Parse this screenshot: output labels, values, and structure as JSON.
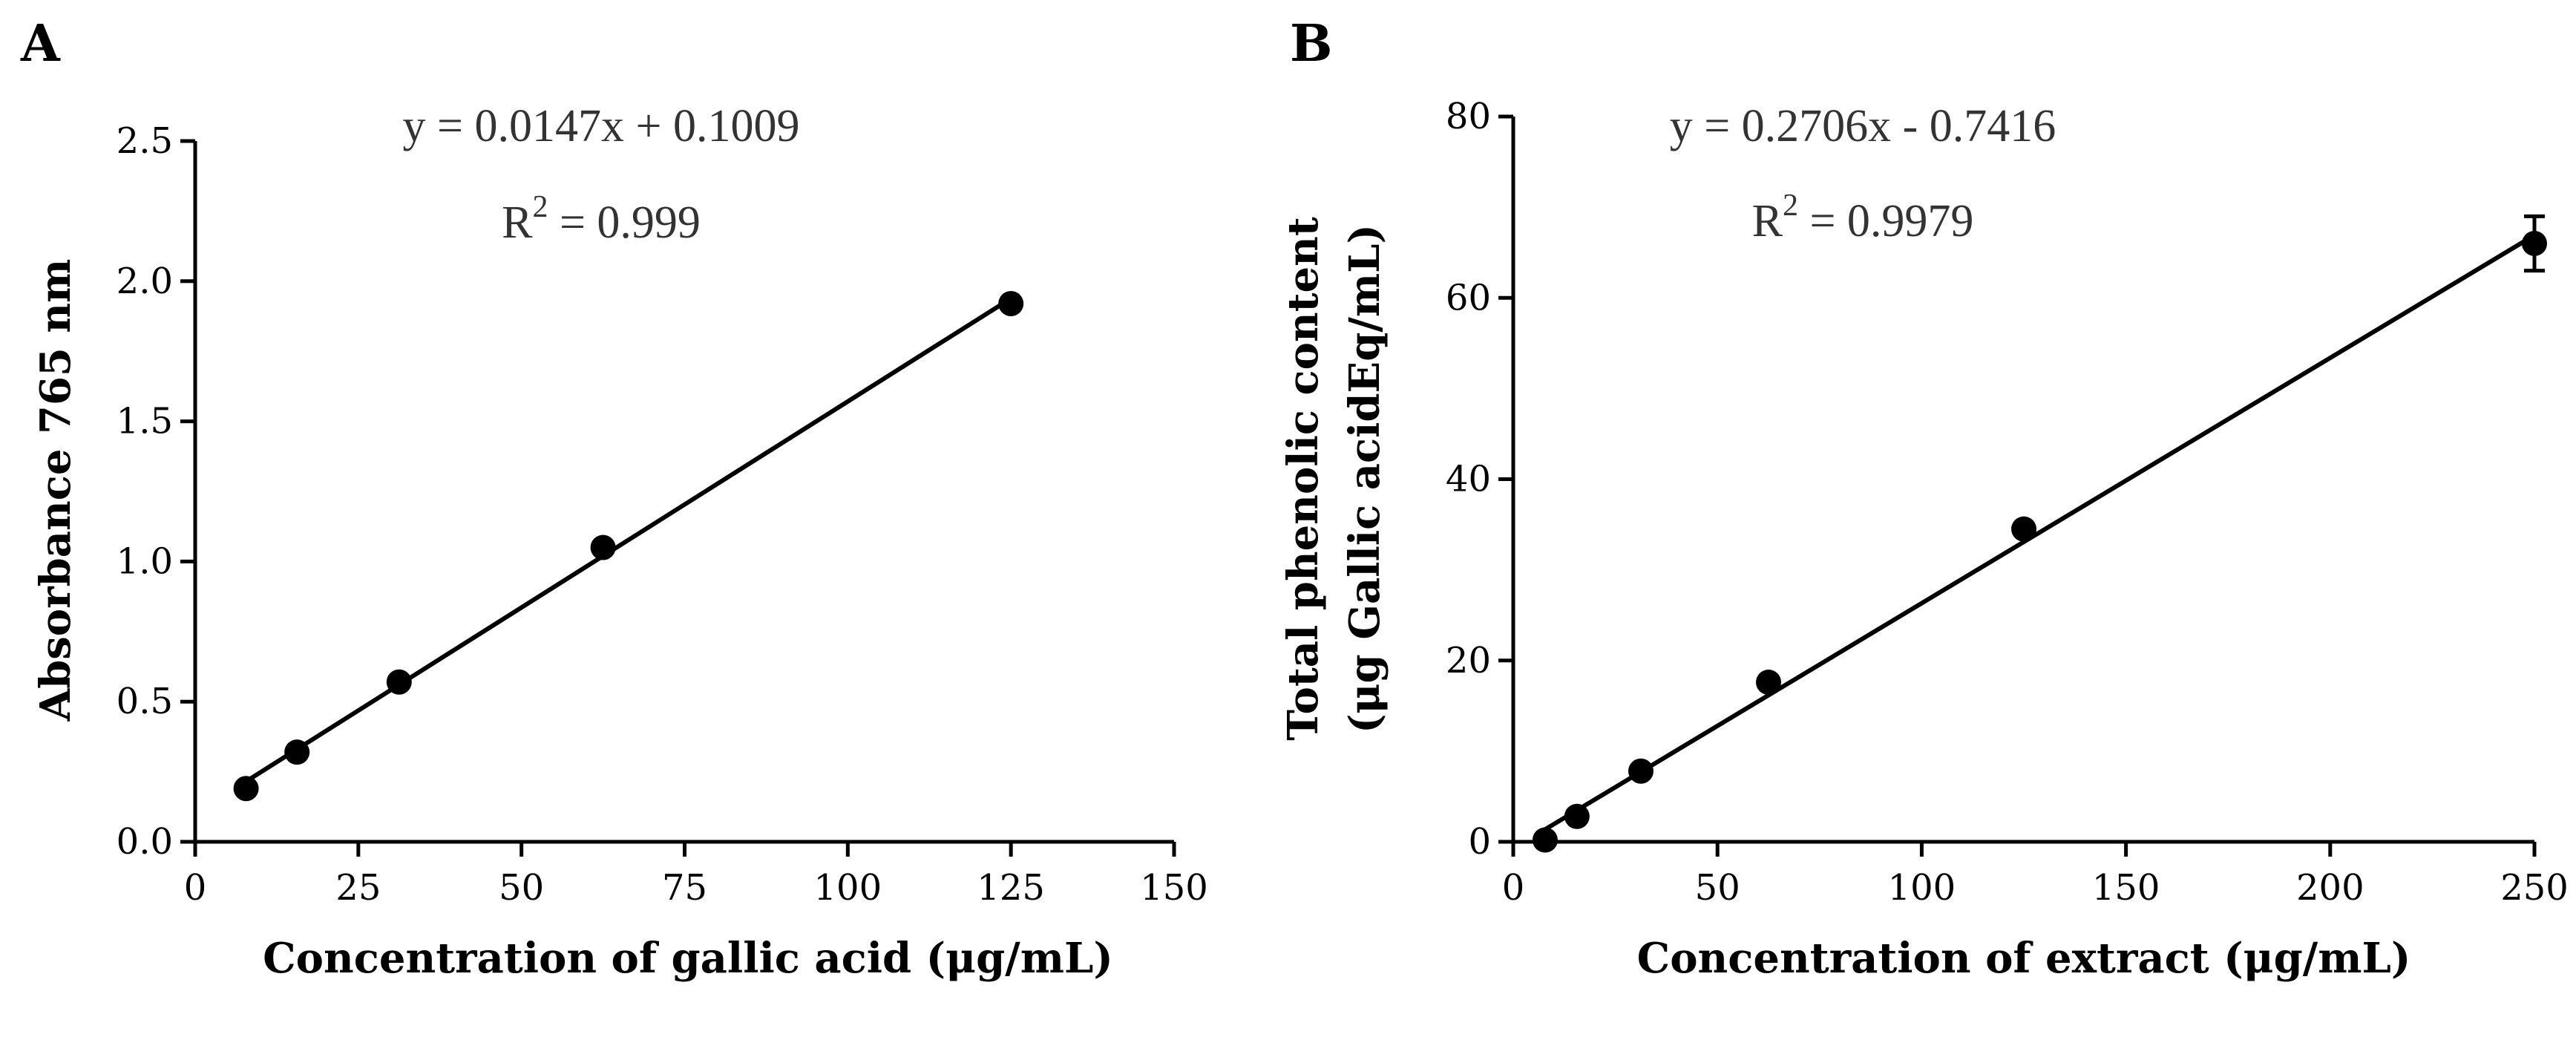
{
  "chart_data": [
    {
      "type": "scatter",
      "panel": "A",
      "title": "",
      "xlabel": "Concentration of gallic acid (μg/mL)",
      "ylabel": "Absorbance 765 nm",
      "xlim": [
        0,
        150
      ],
      "ylim": [
        0,
        2.5
      ],
      "xticks": [
        "0",
        "25",
        "50",
        "75",
        "100",
        "125",
        "150"
      ],
      "yticks": [
        "0.0",
        "0.5",
        "1.0",
        "1.5",
        "2.0",
        "2.5"
      ],
      "grid": false,
      "x": [
        7.8,
        15.6,
        31.25,
        62.5,
        125
      ],
      "y": [
        0.19,
        0.32,
        0.57,
        1.05,
        1.92
      ],
      "yerr": [
        0,
        0,
        0,
        0,
        0
      ],
      "fit": {
        "slope": 0.0147,
        "intercept": 0.1009
      },
      "equation": "y = 0.0147x + 0.1009",
      "r2_prefix": "R",
      "r2_exp": "2",
      "r2_value": " = 0.999"
    },
    {
      "type": "scatter",
      "panel": "B",
      "title": "",
      "xlabel": "Concentration of extract (μg/mL)",
      "ylabel_line1": "Total phenolic content",
      "ylabel_line2": "(μg Gallic acidEq/mL)",
      "xlim": [
        0,
        250
      ],
      "ylim": [
        0,
        80
      ],
      "xticks": [
        "0",
        "50",
        "100",
        "150",
        "200",
        "250"
      ],
      "yticks": [
        "0",
        "20",
        "40",
        "60",
        "80"
      ],
      "grid": false,
      "x": [
        7.8,
        15.6,
        31.25,
        62.5,
        125,
        250
      ],
      "y": [
        0.2,
        2.8,
        7.8,
        17.6,
        34.5,
        66.0
      ],
      "yerr": [
        0,
        0,
        0,
        0,
        0,
        3.0
      ],
      "fit": {
        "slope": 0.2706,
        "intercept": -0.7416
      },
      "equation": "y = 0.2706x - 0.7416",
      "r2_prefix": "R",
      "r2_exp": "2",
      "r2_value": " = 0.9979"
    }
  ]
}
